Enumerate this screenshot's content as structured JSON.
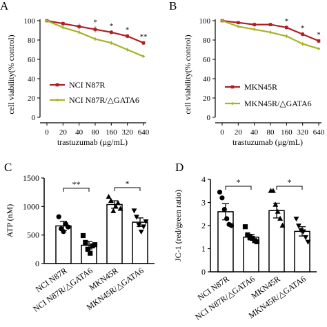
{
  "panels": {
    "A": "A",
    "B": "B",
    "C": "C",
    "D": "D"
  },
  "colors": {
    "red": "#b01e23",
    "olive": "#a7b226",
    "black": "#000000"
  },
  "chart_data": [
    {
      "panel": "A",
      "type": "line",
      "categories": [
        "0",
        "20",
        "40",
        "80",
        "160",
        "320",
        "640"
      ],
      "xlabel": "trastuzumab (μg/mL)",
      "ylabel": "cell viability(% control)",
      "ylim": [
        0,
        100
      ],
      "yticks": [
        "0",
        "20",
        "40",
        "60",
        "80",
        "100"
      ],
      "series": [
        {
          "name": "NCI N87R",
          "color": "#b01e23",
          "values": [
            100,
            97,
            94,
            91,
            88,
            84,
            77
          ],
          "errors": [
            1,
            2,
            3,
            3,
            2,
            2,
            2
          ]
        },
        {
          "name": "NCI N87R/△GATA6",
          "color": "#a7b226",
          "values": [
            100,
            93,
            88,
            81,
            77,
            70,
            63
          ],
          "errors": [
            1,
            2,
            2,
            2,
            2,
            2,
            1
          ]
        }
      ],
      "significance": [
        "",
        "",
        "",
        "*",
        "*",
        "*",
        "**"
      ],
      "legend": "bottom-left"
    },
    {
      "panel": "B",
      "type": "line",
      "categories": [
        "0",
        "20",
        "40",
        "80",
        "160",
        "320",
        "640"
      ],
      "xlabel": "trastuzumab (μg/mL)",
      "ylabel": "cell viability(% control)",
      "ylim": [
        0,
        100
      ],
      "yticks": [
        "0",
        "20",
        "40",
        "60",
        "80",
        "100"
      ],
      "series": [
        {
          "name": "MKN45R",
          "color": "#b01e23",
          "values": [
            100,
            98,
            96,
            96,
            93,
            86,
            79
          ],
          "errors": [
            1,
            1,
            2,
            1,
            2,
            2,
            2
          ]
        },
        {
          "name": "MKN45R/△GATA6",
          "color": "#a7b226",
          "values": [
            100,
            94,
            91,
            88,
            84,
            76,
            71
          ],
          "errors": [
            1,
            1,
            1,
            2,
            2,
            2,
            1
          ]
        }
      ],
      "significance": [
        "",
        "",
        "",
        "",
        "*",
        "*",
        "*"
      ],
      "legend": "bottom-left"
    },
    {
      "panel": "C",
      "type": "bar",
      "categories": [
        "NCI N87R",
        "NCI N87R/△GATA6",
        "MKN45R",
        "MKN45R/△GATA6"
      ],
      "ylabel": "ATP (nM)",
      "ylim": [
        0,
        1500
      ],
      "yticks": [
        "0",
        "500",
        "1000",
        "1500"
      ],
      "values": [
        660,
        320,
        1035,
        725
      ],
      "errors": [
        80,
        65,
        65,
        75
      ],
      "markers": [
        "circle",
        "square",
        "triangle-up",
        "triangle-down"
      ],
      "points": [
        [
          820,
          610,
          560,
          690,
          640
        ],
        [
          490,
          370,
          250,
          180,
          310,
          330
        ],
        [
          1170,
          1100,
          920,
          1000,
          1060,
          960
        ],
        [
          930,
          820,
          680,
          560,
          650,
          740
        ]
      ],
      "brackets": [
        {
          "from": 0,
          "to": 1,
          "y": 1320,
          "label": "**"
        },
        {
          "from": 2,
          "to": 3,
          "y": 1330,
          "label": "*"
        }
      ]
    },
    {
      "panel": "D",
      "type": "bar",
      "categories": [
        "NCI N87R",
        "NCI N87R/△GATA6",
        "MKN45R",
        "MKN45R/△GATA6"
      ],
      "ylabel": "JC-1 (red/green ratio)",
      "ylim": [
        0,
        4
      ],
      "yticks": [
        "0",
        "1",
        "2",
        "3",
        "4"
      ],
      "values": [
        2.6,
        1.5,
        2.65,
        1.75
      ],
      "errors": [
        0.35,
        0.12,
        0.32,
        0.2
      ],
      "markers": [
        "circle",
        "square",
        "triangle-up",
        "triangle-down"
      ],
      "points": [
        [
          3.45,
          3.2,
          2.7,
          2.3,
          2.05,
          2.0
        ],
        [
          1.95,
          1.6,
          1.5,
          1.45,
          1.35,
          1.3
        ],
        [
          3.5,
          3.5,
          2.9,
          2.6,
          2.3,
          2.0
        ],
        [
          2.3,
          2.0,
          1.8,
          1.75,
          1.5,
          1.3
        ]
      ],
      "brackets": [
        {
          "from": 0,
          "to": 1,
          "y": 3.7,
          "label": "*"
        },
        {
          "from": 2,
          "to": 3,
          "y": 3.7,
          "label": "*"
        }
      ]
    }
  ]
}
